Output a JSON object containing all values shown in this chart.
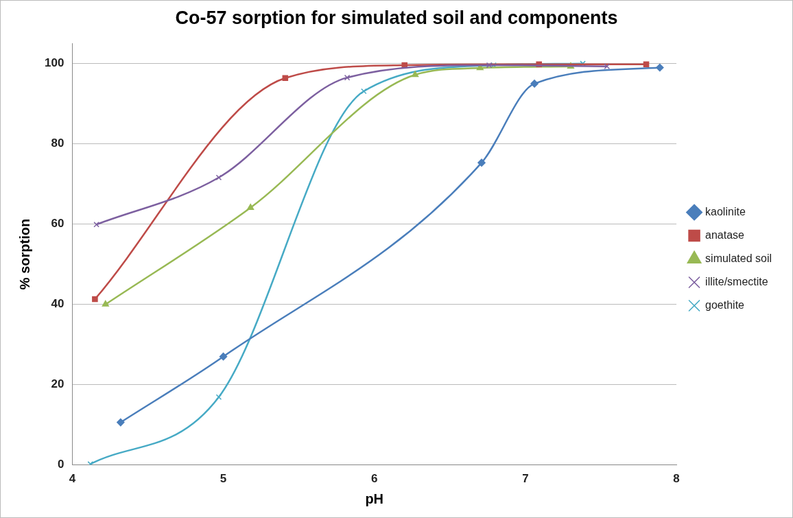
{
  "chart_data": {
    "type": "line",
    "title": "Co-57 sorption for simulated soil and components",
    "xlabel": "pH",
    "ylabel": "% sorption",
    "xlim": [
      4,
      8
    ],
    "xticks": [
      4,
      5,
      6,
      7,
      8
    ],
    "ylim": [
      0,
      105
    ],
    "yticks": [
      0,
      20,
      40,
      60,
      80,
      100
    ],
    "grid": "y",
    "legend": "right",
    "series": [
      {
        "name": "kaolinite",
        "color": "#4a7ebb",
        "marker": "diamond",
        "x": [
          4.32,
          5.0,
          6.71,
          7.06,
          7.89
        ],
        "values": [
          10.6,
          27,
          75.3,
          95,
          99
        ]
      },
      {
        "name": "anatase",
        "color": "#be4b48",
        "marker": "square",
        "x": [
          4.15,
          5.41,
          6.2,
          7.09,
          7.8
        ],
        "values": [
          41.3,
          96.4,
          99.6,
          99.8,
          99.8
        ]
      },
      {
        "name": "simulated soil",
        "color": "#98b954",
        "marker": "triangle",
        "x": [
          4.22,
          5.18,
          6.27,
          6.7,
          7.3
        ],
        "values": [
          40,
          64.1,
          97.2,
          98.9,
          99.3
        ]
      },
      {
        "name": "illite/smectite",
        "color": "#7d60a0",
        "marker": "cross",
        "x": [
          4.16,
          4.97,
          5.82,
          6.76,
          7.54
        ],
        "values": [
          59.9,
          71.6,
          96.5,
          99.6,
          99.3
        ]
      },
      {
        "name": "goethite",
        "color": "#46aac5",
        "marker": "cross",
        "x": [
          4.12,
          4.97,
          5.93,
          6.79,
          7.38
        ],
        "values": [
          0.2,
          16.9,
          93.1,
          99.6,
          100
        ]
      }
    ]
  }
}
